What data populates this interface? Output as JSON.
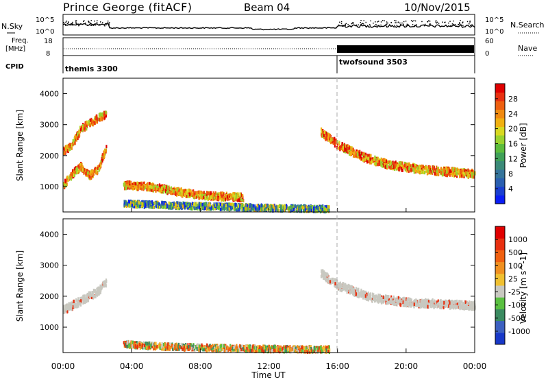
{
  "header": {
    "station": "Prince George (fitACF)",
    "beam": "Beam 04",
    "date": "10/Nov/2015"
  },
  "top_panels": {
    "noise_left_label": "N.Sky",
    "noise_right_label": "N.Search",
    "noise_left_ticks": [
      "10^5",
      "10^0"
    ],
    "noise_right_ticks": [
      "10^5",
      "10^0"
    ],
    "freq_label_1": "Freq.",
    "freq_label_2": "[MHz]",
    "freq_ticks": [
      "18",
      "8"
    ],
    "nave_label": "Nave",
    "nave_ticks": [
      "60",
      "0"
    ],
    "cpid_label": "CPID",
    "cpid_segments": [
      {
        "name": "themis 3300",
        "start": 0,
        "end": 16
      },
      {
        "name": "twofsound 3503",
        "start": 16,
        "end": 24
      }
    ]
  },
  "chart_data": [
    {
      "type": "heatmap",
      "title": "",
      "ylabel": "Slant Range [km]",
      "xlabel": "",
      "xlim": [
        0,
        24
      ],
      "ylim": [
        180,
        4500
      ],
      "yticks": [
        "4000",
        "3000",
        "2000",
        "1000"
      ],
      "colorbar": {
        "label": "Power [dB]",
        "range": [
          0,
          32
        ],
        "ticks": [
          "28",
          "24",
          "20",
          "16",
          "12",
          "8",
          "4"
        ],
        "colors": [
          "#0a1df5",
          "#1a3fd0",
          "#2a5fb0",
          "#35749a",
          "#3b8a78",
          "#3fa058",
          "#5cbc3c",
          "#9ad22e",
          "#d8d820",
          "#f0b010",
          "#f08a10",
          "#ee6010",
          "#e83010",
          "#e00000"
        ]
      },
      "features": [
        {
          "name": "early echo band",
          "x": [
            0.0,
            0.5,
            1.0,
            1.5,
            2.0,
            2.5
          ],
          "y": [
            1100,
            1450,
            1700,
            1400,
            1600,
            2300
          ]
        },
        {
          "name": "upper early band",
          "x": [
            0.0,
            0.5,
            1.0,
            1.5,
            2.0,
            2.5
          ],
          "y": [
            2200,
            2400,
            2900,
            3100,
            3250,
            3400
          ]
        },
        {
          "name": "near range",
          "x": [
            3.5,
            6.0,
            8.0,
            10.5,
            13.0,
            15.5
          ],
          "y": [
            500,
            450,
            420,
            380,
            350,
            330
          ]
        },
        {
          "name": "mid band",
          "x": [
            3.5,
            5.0,
            7.0,
            8.5,
            10.5
          ],
          "y": [
            1100,
            1050,
            850,
            750,
            700
          ]
        },
        {
          "name": "evening band",
          "x": [
            15.0,
            16.0,
            17.5,
            19.0,
            21.0,
            24.0
          ],
          "y": [
            2800,
            2400,
            2000,
            1750,
            1600,
            1450
          ]
        }
      ]
    },
    {
      "type": "heatmap",
      "title": "",
      "ylabel": "Slant Range [km]",
      "xlabel": "Time UT",
      "xlim": [
        0,
        24
      ],
      "ylim": [
        180,
        4500
      ],
      "xticks": [
        "00:00",
        "04:00",
        "08:00",
        "12:00",
        "16:00",
        "20:00",
        "00:00"
      ],
      "yticks": [
        "4000",
        "3000",
        "2000",
        "1000"
      ],
      "colorbar": {
        "label": "Velocity [m s^-1]",
        "ticks": [
          "1000",
          "500",
          "100",
          "25",
          "-25",
          "-100",
          "-500",
          "-1000"
        ],
        "colors": [
          "#1838c8",
          "#3c60c0",
          "#3a8a60",
          "#5ac040",
          "#c8c8c0",
          "#f0c030",
          "#f09020",
          "#f06010",
          "#e83010",
          "#e00000"
        ]
      },
      "features": [
        {
          "name": "ground scatter early",
          "x": [
            0.0,
            1.0,
            2.0,
            2.5
          ],
          "y": [
            1600,
            1900,
            2200,
            2500
          ]
        },
        {
          "name": "ground scatter evening",
          "x": [
            15.0,
            16.0,
            18.0,
            20.0,
            22.0,
            24.0
          ],
          "y": [
            2800,
            2400,
            2000,
            1850,
            1800,
            1750
          ]
        },
        {
          "name": "near range mixed",
          "x": [
            3.5,
            6.0,
            9.0,
            12.0,
            15.5
          ],
          "y": [
            500,
            420,
            380,
            350,
            330
          ]
        }
      ]
    }
  ]
}
